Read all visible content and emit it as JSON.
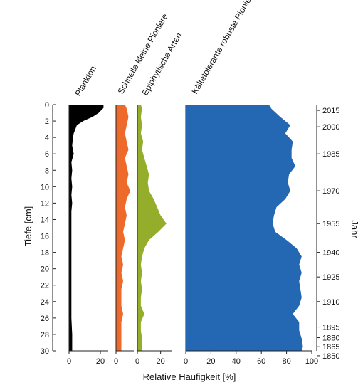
{
  "chart_data": {
    "type": "area",
    "depth_axis": {
      "label": "Tiefe [cm]",
      "range": [
        0,
        30
      ],
      "ticks": [
        0,
        2,
        4,
        6,
        8,
        10,
        12,
        14,
        16,
        18,
        20,
        22,
        24,
        26,
        28,
        30
      ]
    },
    "xlabel": "Relative Häufigkeit [%]",
    "year_axis": {
      "label": "Jahr",
      "ticks": [
        {
          "year": "2015",
          "depth": 0.7
        },
        {
          "year": "2000",
          "depth": 2.7
        },
        {
          "year": "1985",
          "depth": 6.0
        },
        {
          "year": "1970",
          "depth": 10.5
        },
        {
          "year": "1955",
          "depth": 14.5
        },
        {
          "year": "1940",
          "depth": 18.0
        },
        {
          "year": "1925",
          "depth": 21.0
        },
        {
          "year": "1910",
          "depth": 24.0
        },
        {
          "year": "1895",
          "depth": 27.1
        },
        {
          "year": "1880",
          "depth": 28.4
        },
        {
          "year": "1865",
          "depth": 29.5
        },
        {
          "year": "1850",
          "depth": 30.6
        }
      ]
    },
    "series": [
      {
        "name": "Plankton",
        "color": "#000000",
        "xlim": [
          0,
          25
        ],
        "ticks": [
          0,
          20
        ],
        "depth": [
          0,
          0.4,
          1,
          1.5,
          2,
          2.5,
          3,
          3.5,
          4,
          5,
          6,
          7,
          8,
          9,
          10,
          11,
          12,
          13,
          14,
          15,
          16,
          17,
          18,
          19,
          20,
          22,
          24,
          26,
          28,
          30
        ],
        "values": [
          22,
          22,
          19,
          15,
          9,
          5,
          4,
          3,
          2.5,
          2,
          3,
          1.5,
          2,
          1.5,
          2,
          1.5,
          2,
          1.5,
          1.5,
          1.5,
          1.5,
          1.5,
          1.5,
          1.5,
          1.5,
          1.5,
          1.5,
          1.5,
          2,
          2
        ]
      },
      {
        "name": "Schnelle kleine Pioniere",
        "color": "#ee6a2a",
        "xlim": [
          0,
          10
        ],
        "ticks": [
          0
        ],
        "depth": [
          0,
          0.5,
          1.5,
          2.5,
          3.5,
          4.5,
          5.5,
          6.5,
          7.5,
          8.5,
          9.5,
          10.5,
          11.5,
          12.5,
          13.5,
          14.5,
          15.5,
          16.5,
          17.5,
          18.5,
          19.5,
          20.5,
          21.5,
          22.5,
          23.5,
          24.5,
          25.5,
          26.5,
          27.5,
          28.5,
          29.5,
          30
        ],
        "values": [
          5,
          6,
          7,
          6,
          5,
          6,
          7,
          5,
          6,
          7,
          6,
          8,
          6,
          5,
          6,
          5,
          4,
          5,
          4,
          3,
          4,
          3,
          4,
          3,
          3,
          3,
          4,
          3,
          3,
          3,
          3,
          3
        ]
      },
      {
        "name": "Epiphytische Arten",
        "color": "#94ae2b",
        "xlim": [
          0,
          30
        ],
        "ticks": [
          0,
          20
        ],
        "depth": [
          0,
          0.5,
          1.5,
          2.5,
          3.5,
          4.5,
          5.5,
          6.5,
          7.5,
          8.5,
          9.5,
          10.5,
          11.5,
          12.5,
          13.5,
          14.5,
          15.5,
          16.5,
          17.5,
          18.5,
          19.5,
          20.5,
          21.5,
          22.5,
          23.5,
          24.5,
          25.5,
          26.5,
          27.5,
          28.5,
          29.5,
          30
        ],
        "values": [
          3,
          4,
          3,
          4,
          3,
          5,
          4,
          6,
          8,
          10,
          9,
          10,
          14,
          17,
          20,
          25,
          18,
          10,
          6,
          4,
          3,
          4,
          3,
          4,
          3,
          3,
          6,
          3,
          3,
          4,
          4,
          4
        ]
      },
      {
        "name": "Kältetolerante robuste Pioniere",
        "color": "#2468b4",
        "xlim": [
          0,
          100
        ],
        "ticks": [
          0,
          20,
          40,
          60,
          80,
          100
        ],
        "depth": [
          0,
          0.5,
          1.5,
          2.5,
          3.5,
          4.5,
          5.5,
          6.5,
          7.5,
          8.5,
          9.5,
          10.5,
          11.5,
          12.5,
          13.5,
          14.5,
          15.5,
          16.5,
          17.5,
          18.5,
          19.5,
          20.5,
          21.5,
          22.5,
          23.5,
          24.5,
          25.5,
          26.5,
          27.5,
          28.5,
          29.5,
          30
        ],
        "values": [
          66,
          68,
          75,
          83,
          79,
          85,
          84,
          84,
          87,
          82,
          81,
          83,
          79,
          72,
          70,
          69,
          71,
          80,
          88,
          92,
          90,
          92,
          90,
          91,
          92,
          90,
          85,
          90,
          90,
          92,
          93,
          92
        ]
      }
    ]
  }
}
